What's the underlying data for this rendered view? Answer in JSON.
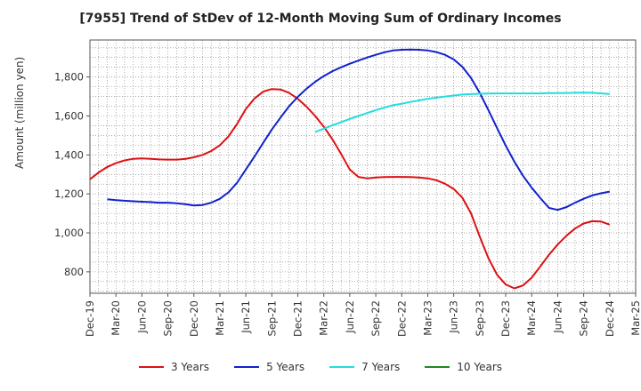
{
  "chart_data": {
    "type": "line",
    "title": "[7955]  Trend of StDev of 12-Month Moving Sum of Ordinary Incomes",
    "xlabel": "",
    "ylabel": "Amount (million yen)",
    "x_ticks": [
      "Dec-19",
      "Mar-20",
      "Jun-20",
      "Sep-20",
      "Dec-20",
      "Mar-21",
      "Jun-21",
      "Sep-21",
      "Dec-21",
      "Mar-22",
      "Jun-22",
      "Sep-22",
      "Dec-22",
      "Mar-23",
      "Jun-23",
      "Sep-23",
      "Dec-23",
      "Mar-24",
      "Jun-24",
      "Sep-24",
      "Dec-24",
      "Mar-25"
    ],
    "y_ticks": [
      800,
      1000,
      1200,
      1400,
      1600,
      1800
    ],
    "ylim": [
      690,
      1990
    ],
    "grid": true,
    "legend_position": "bottom",
    "series": [
      {
        "name": "3 Years",
        "color": "#dd1111",
        "points": [
          [
            "Dec-19",
            1275
          ],
          [
            "Jan-20",
            1310
          ],
          [
            "Feb-20",
            1338
          ],
          [
            "Mar-20",
            1358
          ],
          [
            "Apr-20",
            1372
          ],
          [
            "May-20",
            1380
          ],
          [
            "Jun-20",
            1382
          ],
          [
            "Jul-20",
            1380
          ],
          [
            "Aug-20",
            1377
          ],
          [
            "Sep-20",
            1376
          ],
          [
            "Oct-20",
            1376
          ],
          [
            "Nov-20",
            1379
          ],
          [
            "Dec-20",
            1388
          ],
          [
            "Jan-21",
            1400
          ],
          [
            "Feb-21",
            1420
          ],
          [
            "Mar-21",
            1450
          ],
          [
            "Apr-21",
            1495
          ],
          [
            "May-21",
            1560
          ],
          [
            "Jun-21",
            1635
          ],
          [
            "Jul-21",
            1690
          ],
          [
            "Aug-21",
            1725
          ],
          [
            "Sep-21",
            1738
          ],
          [
            "Oct-21",
            1736
          ],
          [
            "Nov-21",
            1718
          ],
          [
            "Dec-21",
            1688
          ],
          [
            "Jan-22",
            1648
          ],
          [
            "Feb-22",
            1600
          ],
          [
            "Mar-22",
            1545
          ],
          [
            "Apr-22",
            1480
          ],
          [
            "May-22",
            1405
          ],
          [
            "Jun-22",
            1325
          ],
          [
            "Jul-22",
            1287
          ],
          [
            "Aug-22",
            1280
          ],
          [
            "Sep-22",
            1284
          ],
          [
            "Oct-22",
            1286
          ],
          [
            "Nov-22",
            1287
          ],
          [
            "Dec-22",
            1287
          ],
          [
            "Jan-23",
            1286
          ],
          [
            "Feb-23",
            1284
          ],
          [
            "Mar-23",
            1280
          ],
          [
            "Apr-23",
            1270
          ],
          [
            "May-23",
            1252
          ],
          [
            "Jun-23",
            1225
          ],
          [
            "Jul-23",
            1180
          ],
          [
            "Aug-23",
            1100
          ],
          [
            "Sep-23",
            980
          ],
          [
            "Oct-23",
            870
          ],
          [
            "Nov-23",
            785
          ],
          [
            "Dec-23",
            735
          ],
          [
            "Jan-24",
            715
          ],
          [
            "Feb-24",
            730
          ],
          [
            "Mar-24",
            770
          ],
          [
            "Apr-24",
            828
          ],
          [
            "May-24",
            888
          ],
          [
            "Jun-24",
            940
          ],
          [
            "Jul-24",
            985
          ],
          [
            "Aug-24",
            1022
          ],
          [
            "Sep-24",
            1048
          ],
          [
            "Oct-24",
            1060
          ],
          [
            "Nov-24",
            1058
          ],
          [
            "Dec-24",
            1042
          ]
        ]
      },
      {
        "name": "5 Years",
        "color": "#1122cc",
        "points": [
          [
            "Feb-20",
            1172
          ],
          [
            "Mar-20",
            1168
          ],
          [
            "Apr-20",
            1165
          ],
          [
            "May-20",
            1162
          ],
          [
            "Jun-20",
            1160
          ],
          [
            "Jul-20",
            1158
          ],
          [
            "Aug-20",
            1155
          ],
          [
            "Sep-20",
            1155
          ],
          [
            "Oct-20",
            1152
          ],
          [
            "Nov-20",
            1147
          ],
          [
            "Dec-20",
            1140
          ],
          [
            "Jan-21",
            1143
          ],
          [
            "Feb-21",
            1155
          ],
          [
            "Mar-21",
            1175
          ],
          [
            "Apr-21",
            1208
          ],
          [
            "May-21",
            1258
          ],
          [
            "Jun-21",
            1325
          ],
          [
            "Jul-21",
            1392
          ],
          [
            "Aug-21",
            1462
          ],
          [
            "Sep-21",
            1530
          ],
          [
            "Oct-21",
            1592
          ],
          [
            "Nov-21",
            1650
          ],
          [
            "Dec-21",
            1698
          ],
          [
            "Jan-22",
            1740
          ],
          [
            "Feb-22",
            1775
          ],
          [
            "Mar-22",
            1805
          ],
          [
            "Apr-22",
            1830
          ],
          [
            "May-22",
            1850
          ],
          [
            "Jun-22",
            1868
          ],
          [
            "Jul-22",
            1884
          ],
          [
            "Aug-22",
            1900
          ],
          [
            "Sep-22",
            1914
          ],
          [
            "Oct-22",
            1927
          ],
          [
            "Nov-22",
            1936
          ],
          [
            "Dec-22",
            1940
          ],
          [
            "Jan-23",
            1941
          ],
          [
            "Feb-23",
            1940
          ],
          [
            "Mar-23",
            1936
          ],
          [
            "Apr-23",
            1928
          ],
          [
            "May-23",
            1914
          ],
          [
            "Jun-23",
            1890
          ],
          [
            "Jul-23",
            1852
          ],
          [
            "Aug-23",
            1795
          ],
          [
            "Sep-23",
            1718
          ],
          [
            "Oct-23",
            1630
          ],
          [
            "Nov-23",
            1538
          ],
          [
            "Dec-23",
            1448
          ],
          [
            "Jan-24",
            1365
          ],
          [
            "Feb-24",
            1293
          ],
          [
            "Mar-24",
            1232
          ],
          [
            "Apr-24",
            1178
          ],
          [
            "May-24",
            1128
          ],
          [
            "Jun-24",
            1118
          ],
          [
            "Jul-24",
            1132
          ],
          [
            "Aug-24",
            1155
          ],
          [
            "Sep-24",
            1175
          ],
          [
            "Oct-24",
            1192
          ],
          [
            "Nov-24",
            1203
          ],
          [
            "Dec-24",
            1212
          ]
        ]
      },
      {
        "name": "7 Years",
        "color": "#22dddd",
        "points": [
          [
            "Feb-22",
            1518
          ],
          [
            "Mar-22",
            1535
          ],
          [
            "Apr-22",
            1552
          ],
          [
            "May-22",
            1568
          ],
          [
            "Jun-22",
            1585
          ],
          [
            "Jul-22",
            1600
          ],
          [
            "Aug-22",
            1615
          ],
          [
            "Sep-22",
            1630
          ],
          [
            "Oct-22",
            1643
          ],
          [
            "Nov-22",
            1655
          ],
          [
            "Dec-22",
            1663
          ],
          [
            "Jan-23",
            1672
          ],
          [
            "Feb-23",
            1680
          ],
          [
            "Mar-23",
            1688
          ],
          [
            "Apr-23",
            1694
          ],
          [
            "May-23",
            1700
          ],
          [
            "Jun-23",
            1705
          ],
          [
            "Jul-23",
            1710
          ],
          [
            "Aug-23",
            1712
          ],
          [
            "Sep-23",
            1714
          ],
          [
            "Oct-23",
            1715
          ],
          [
            "Nov-23",
            1716
          ],
          [
            "Dec-23",
            1716
          ],
          [
            "Jan-24",
            1716
          ],
          [
            "Feb-24",
            1716
          ],
          [
            "Mar-24",
            1716
          ],
          [
            "Apr-24",
            1716
          ],
          [
            "May-24",
            1717
          ],
          [
            "Jun-24",
            1717
          ],
          [
            "Jul-24",
            1718
          ],
          [
            "Aug-24",
            1719
          ],
          [
            "Sep-24",
            1720
          ],
          [
            "Oct-24",
            1719
          ],
          [
            "Nov-24",
            1716
          ],
          [
            "Dec-24",
            1713
          ]
        ]
      },
      {
        "name": "10 Years",
        "color": "#228822",
        "points": []
      }
    ]
  }
}
